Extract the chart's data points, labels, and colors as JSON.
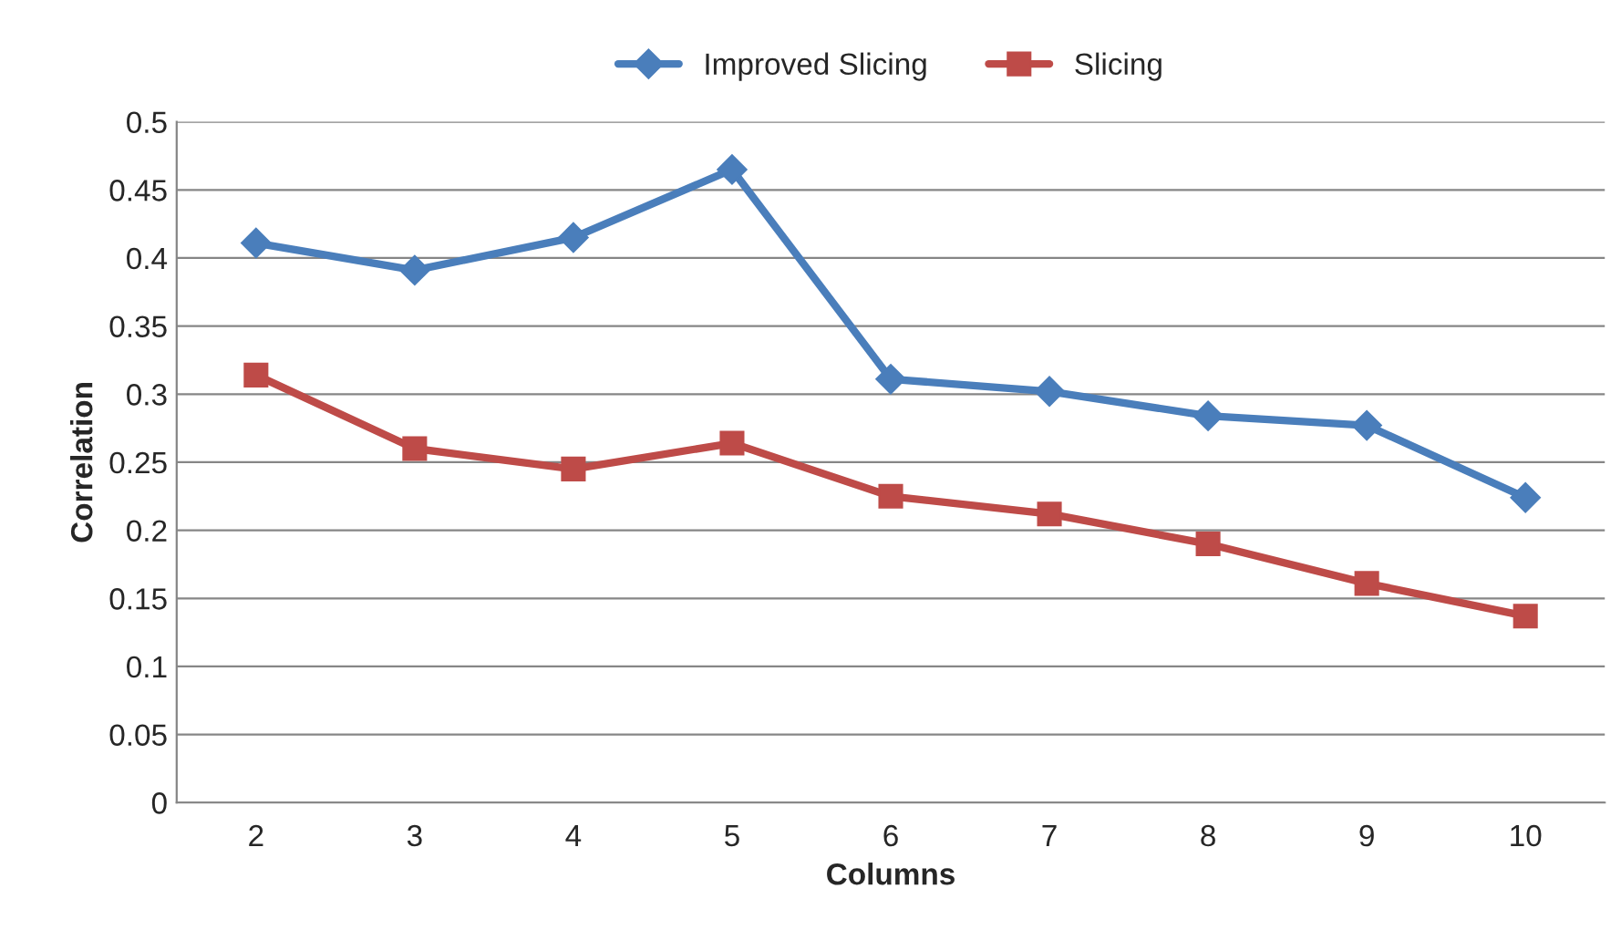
{
  "chart_data": {
    "type": "line",
    "xlabel": "Columns",
    "ylabel": "Correlation",
    "categories": [
      "2",
      "3",
      "4",
      "5",
      "6",
      "7",
      "8",
      "9",
      "10"
    ],
    "series": [
      {
        "name": "Improved Slicing",
        "color": "#4a7ebb",
        "marker": "diamond",
        "values": [
          0.411,
          0.391,
          0.415,
          0.465,
          0.311,
          0.302,
          0.284,
          0.277,
          0.224
        ]
      },
      {
        "name": "Slicing",
        "color": "#be4b48",
        "marker": "square",
        "values": [
          0.314,
          0.26,
          0.245,
          0.264,
          0.225,
          0.212,
          0.19,
          0.161,
          0.137
        ]
      }
    ],
    "ylim": [
      0,
      0.5
    ],
    "yticks": [
      {
        "value": 0,
        "label": "0"
      },
      0.05,
      0.1,
      0.15,
      0.2,
      0.25,
      0.3,
      0.35,
      0.4,
      0.45,
      0.5
    ],
    "grid": "y",
    "legend": "top",
    "line_style": "solid"
  }
}
